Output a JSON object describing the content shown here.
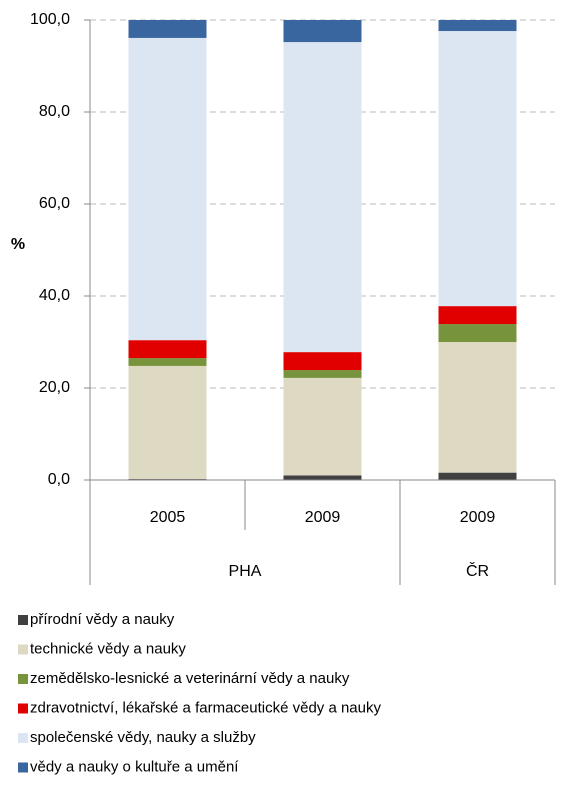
{
  "chart_data": {
    "type": "stacked_bar",
    "y_label": "%",
    "categories": [
      "2005",
      "2009",
      "2009"
    ],
    "groups": [
      "PHA",
      "PHA",
      "ČR"
    ],
    "series": [
      {
        "name": "přírodní vědy a nauky",
        "color": "#404040",
        "values": [
          0.2,
          1.0,
          1.6
        ]
      },
      {
        "name": "technické vědy a nauky",
        "color": "#ddd9c3",
        "values": [
          24.6,
          21.2,
          28.4
        ]
      },
      {
        "name": "zemědělsko-lesnické a veterinární vědy a nauky",
        "color": "#77933c",
        "values": [
          1.7,
          1.7,
          3.9
        ]
      },
      {
        "name": "zdravotnictví, lékařské a farmaceutické vědy a nauky",
        "color": "#e00000",
        "values": [
          3.9,
          3.9,
          3.9
        ]
      },
      {
        "name": "společenské vědy, nauky a služby",
        "color": "#dce6f2",
        "values": [
          65.7,
          67.4,
          59.8
        ]
      },
      {
        "name": "vědy a nauky o kultuře a umění",
        "color": "#3a66a0",
        "values": [
          3.9,
          4.8,
          2.4
        ]
      }
    ],
    "ylim": [
      0,
      100
    ],
    "yticks": [
      {
        "value": 0,
        "label": "0,0"
      },
      {
        "value": 20,
        "label": "20,0"
      },
      {
        "value": 40,
        "label": "40,0"
      },
      {
        "value": 60,
        "label": "60,0"
      },
      {
        "value": 80,
        "label": "80,0"
      },
      {
        "value": 100,
        "label": "100,0"
      }
    ],
    "grid": true
  }
}
